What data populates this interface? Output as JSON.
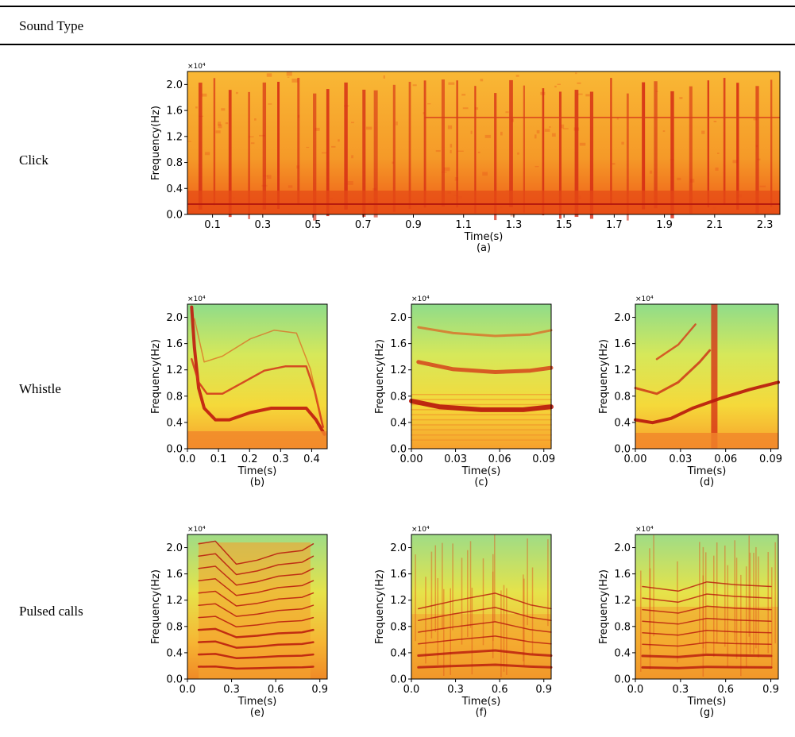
{
  "header": "Sound Type",
  "rows": [
    {
      "label": "Click",
      "panels": [
        {
          "caption": "(a)",
          "multiplier": "×10⁴",
          "ylabel": "Frequency(Hz)",
          "xlabel": "Time(s)",
          "ylim": [
            0,
            2.2
          ],
          "xlim": [
            0,
            2.36
          ],
          "yticks": [
            "0.0",
            "0.4",
            "0.8",
            "1.2",
            "1.6",
            "2.0"
          ],
          "xticks": [
            "0.1",
            "0.3",
            "0.5",
            "0.7",
            "0.9",
            "1.1",
            "1.3",
            "1.5",
            "1.7",
            "1.9",
            "2.1",
            "2.3"
          ]
        }
      ]
    },
    {
      "label": "Whistle",
      "panels": [
        {
          "caption": "(b)",
          "multiplier": "×10⁴",
          "ylabel": "Frequency(Hz)",
          "xlabel": "Time(s)",
          "ylim": [
            0,
            2.2
          ],
          "xlim": [
            0,
            0.45
          ],
          "yticks": [
            "0.0",
            "0.4",
            "0.8",
            "1.2",
            "1.6",
            "2.0"
          ],
          "xticks": [
            "0.0",
            "0.1",
            "0.2",
            "0.3",
            "0.4"
          ]
        },
        {
          "caption": "(c)",
          "multiplier": "×10⁴",
          "ylabel": "Frequency(Hz)",
          "xlabel": "Time(s)",
          "ylim": [
            0,
            2.2
          ],
          "xlim": [
            0,
            0.095
          ],
          "yticks": [
            "0.0",
            "0.4",
            "0.8",
            "1.2",
            "1.6",
            "2.0"
          ],
          "xticks": [
            "0.00",
            "0.03",
            "0.06",
            "0.09"
          ]
        },
        {
          "caption": "(d)",
          "multiplier": "×10⁴",
          "ylabel": "Frequency(Hz)",
          "xlabel": "Time(s)",
          "ylim": [
            0,
            2.2
          ],
          "xlim": [
            0,
            0.095
          ],
          "yticks": [
            "0.0",
            "0.4",
            "0.8",
            "1.2",
            "1.6",
            "2.0"
          ],
          "xticks": [
            "0.00",
            "0.03",
            "0.06",
            "0.09"
          ]
        }
      ]
    },
    {
      "label": "Pulsed calls",
      "panels": [
        {
          "caption": "(e)",
          "multiplier": "×10⁴",
          "ylabel": "Frequency(Hz)",
          "xlabel": "Time(s)",
          "ylim": [
            0,
            2.2
          ],
          "xlim": [
            0,
            0.95
          ],
          "yticks": [
            "0.0",
            "0.4",
            "0.8",
            "1.2",
            "1.6",
            "2.0"
          ],
          "xticks": [
            "0.0",
            "0.3",
            "0.6",
            "0.9"
          ]
        },
        {
          "caption": "(f)",
          "multiplier": "×10⁴",
          "ylabel": "Frequency(Hz)",
          "xlabel": "Time(s)",
          "ylim": [
            0,
            2.2
          ],
          "xlim": [
            0,
            0.95
          ],
          "yticks": [
            "0.0",
            "0.4",
            "0.8",
            "1.2",
            "1.6",
            "2.0"
          ],
          "xticks": [
            "0.0",
            "0.3",
            "0.6",
            "0.9"
          ]
        },
        {
          "caption": "(g)",
          "multiplier": "×10⁴",
          "ylabel": "Frequency(Hz)",
          "xlabel": "Time(s)",
          "ylim": [
            0,
            2.2
          ],
          "xlim": [
            0,
            0.95
          ],
          "yticks": [
            "0.0",
            "0.4",
            "0.8",
            "1.2",
            "1.6",
            "2.0"
          ],
          "xticks": [
            "0.0",
            "0.3",
            "0.6",
            "0.9"
          ]
        }
      ]
    }
  ]
}
